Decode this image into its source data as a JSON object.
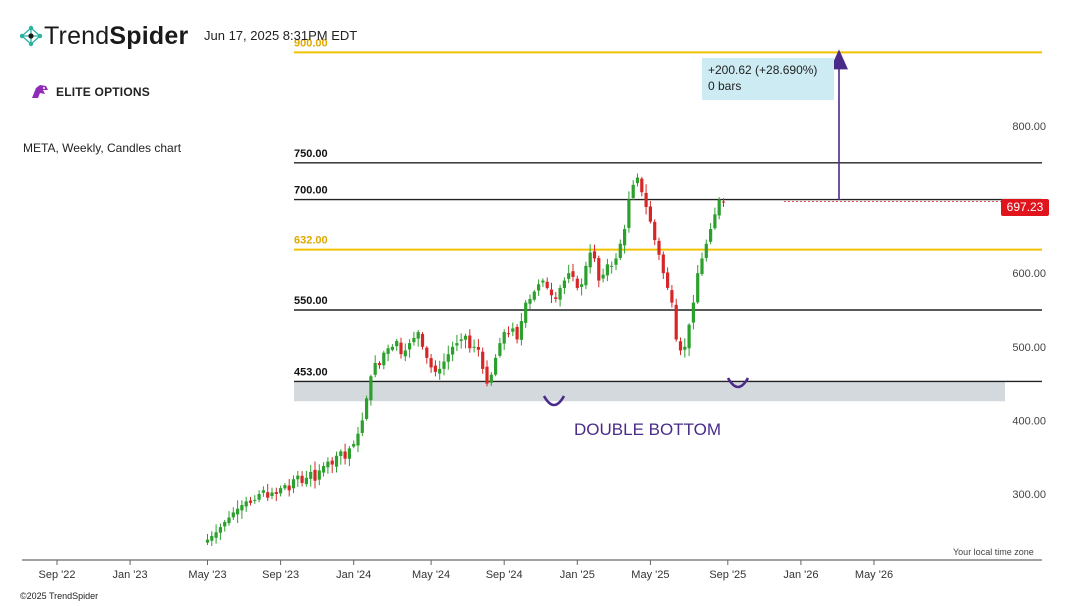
{
  "header": {
    "brand_light": "Trend",
    "brand_bold": "Spider",
    "datetime": "Jun 17, 2025 8:31PM EDT",
    "partner": "ELITE OPTIONS",
    "subtitle": "META, Weekly, Candles chart",
    "logo_icon": "trendspider-network-icon",
    "partner_icon": "elite-options-dragon-icon"
  },
  "footer": {
    "copyright": "©2025 TrendSpider",
    "tz_note": "Your local time zone"
  },
  "measure": {
    "line1": "+200.62 (+28.690%)",
    "line2": "0 bars"
  },
  "current_price": "697.23",
  "colors": {
    "bull": "#2ca02c",
    "bear": "#d62728",
    "level_black": "#222222",
    "level_gold": "#f2c200",
    "support_zone": "#d3d9dd",
    "annotation": "#4a2b8a",
    "measure_bg": "#cdebf3",
    "price_tag": "#e0141c"
  },
  "chart_data": {
    "type": "candlestick",
    "title": "META, Weekly, Candles chart",
    "ylim": [
      236,
      912
    ],
    "y_ticks": [
      300,
      400,
      500,
      600,
      800
    ],
    "y_tick_labels": [
      "300.00",
      "400.00",
      "500.00",
      "600.00",
      "800.00"
    ],
    "x_ticks": [
      "Sep '22",
      "Jan '23",
      "May '23",
      "Sep '23",
      "Jan '24",
      "May '24",
      "Sep '24",
      "Jan '25",
      "May '25",
      "Sep '25",
      "Jan '26",
      "May '26"
    ],
    "x_tick_weeks": [
      0,
      17,
      35,
      52,
      69,
      87,
      104,
      121,
      138,
      156,
      173,
      190
    ],
    "levels": [
      {
        "value": 900,
        "label": "900.00",
        "color": "gold"
      },
      {
        "value": 750,
        "label": "750.00",
        "color": "black"
      },
      {
        "value": 700,
        "label": "700.00",
        "color": "black"
      },
      {
        "value": 632,
        "label": "632.00",
        "color": "gold"
      },
      {
        "value": 550,
        "label": "550.00",
        "color": "black"
      },
      {
        "value": 453,
        "label": "453.00",
        "color": "black"
      }
    ],
    "support_zone": [
      426,
      453
    ],
    "annotation": "DOUBLE BOTTOM",
    "candles_start_week": 35,
    "closes": [
      238,
      243,
      248,
      255,
      262,
      268,
      275,
      280,
      285,
      290,
      288,
      292,
      300,
      305,
      295,
      302,
      300,
      308,
      312,
      305,
      320,
      325,
      315,
      322,
      330,
      318,
      332,
      338,
      344,
      340,
      352,
      358,
      348,
      362,
      368,
      382,
      400,
      430,
      460,
      478,
      475,
      492,
      498,
      500,
      508,
      490,
      495,
      505,
      512,
      520,
      500,
      485,
      472,
      466,
      470,
      480,
      490,
      500,
      505,
      510,
      515,
      498,
      500,
      496,
      470,
      450,
      462,
      485,
      505,
      520,
      518,
      525,
      510,
      535,
      560,
      565,
      575,
      585,
      590,
      580,
      570,
      565,
      580,
      590,
      600,
      595,
      580,
      585,
      610,
      628,
      620,
      590,
      598,
      612,
      610,
      620,
      640,
      660,
      700,
      720,
      730,
      710,
      690,
      670,
      645,
      625,
      600,
      580,
      560,
      510,
      495,
      500,
      530,
      560,
      600,
      620,
      640,
      660,
      680,
      700,
      697
    ],
    "current_price": 697.23,
    "measure": {
      "from": 700,
      "to": 900,
      "change": "+200.62 (+28.690%)",
      "bars": "0 bars"
    }
  }
}
